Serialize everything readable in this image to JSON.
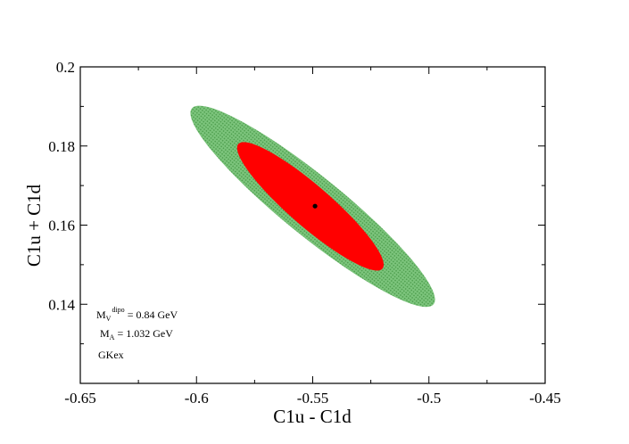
{
  "chart_data": {
    "type": "scatter",
    "title": "",
    "xlabel": "C1u - C1d",
    "ylabel": "C1u + C1d",
    "xlim": [
      -0.65,
      -0.45
    ],
    "ylim": [
      0.12,
      0.2
    ],
    "x_ticks": [
      -0.65,
      -0.6,
      -0.55,
      -0.5,
      -0.45
    ],
    "x_tick_labels": [
      "-0.65",
      "-0.6",
      "-0.55",
      "-0.5",
      "-0.45"
    ],
    "y_ticks": [
      0.14,
      0.16,
      0.18,
      0.2
    ],
    "y_tick_labels": [
      "0.14",
      "0.16",
      "0.18",
      "0.2"
    ],
    "grid": false,
    "legend": "none",
    "regions": [
      {
        "color": "#6fbf6f",
        "endpoints": [
          [
            -0.602,
            0.1895
          ],
          [
            -0.498,
            0.14
          ]
        ],
        "minor_half_width": 0.0075
      },
      {
        "color": "#ff0000",
        "endpoints": [
          [
            -0.582,
            0.1805
          ],
          [
            -0.52,
            0.149
          ]
        ],
        "minor_half_width": 0.0052
      }
    ],
    "point": {
      "x": -0.549,
      "y": 0.1648,
      "color": "#000000"
    },
    "annotations": {
      "mv_main": "M",
      "mv_sub": "V",
      "mv_sup": "dipo",
      "mv_value": " = 0.84 GeV",
      "ma_main": "M",
      "ma_sub": "A",
      "ma_value": " = 1.032 GeV",
      "label": "GKex"
    }
  }
}
